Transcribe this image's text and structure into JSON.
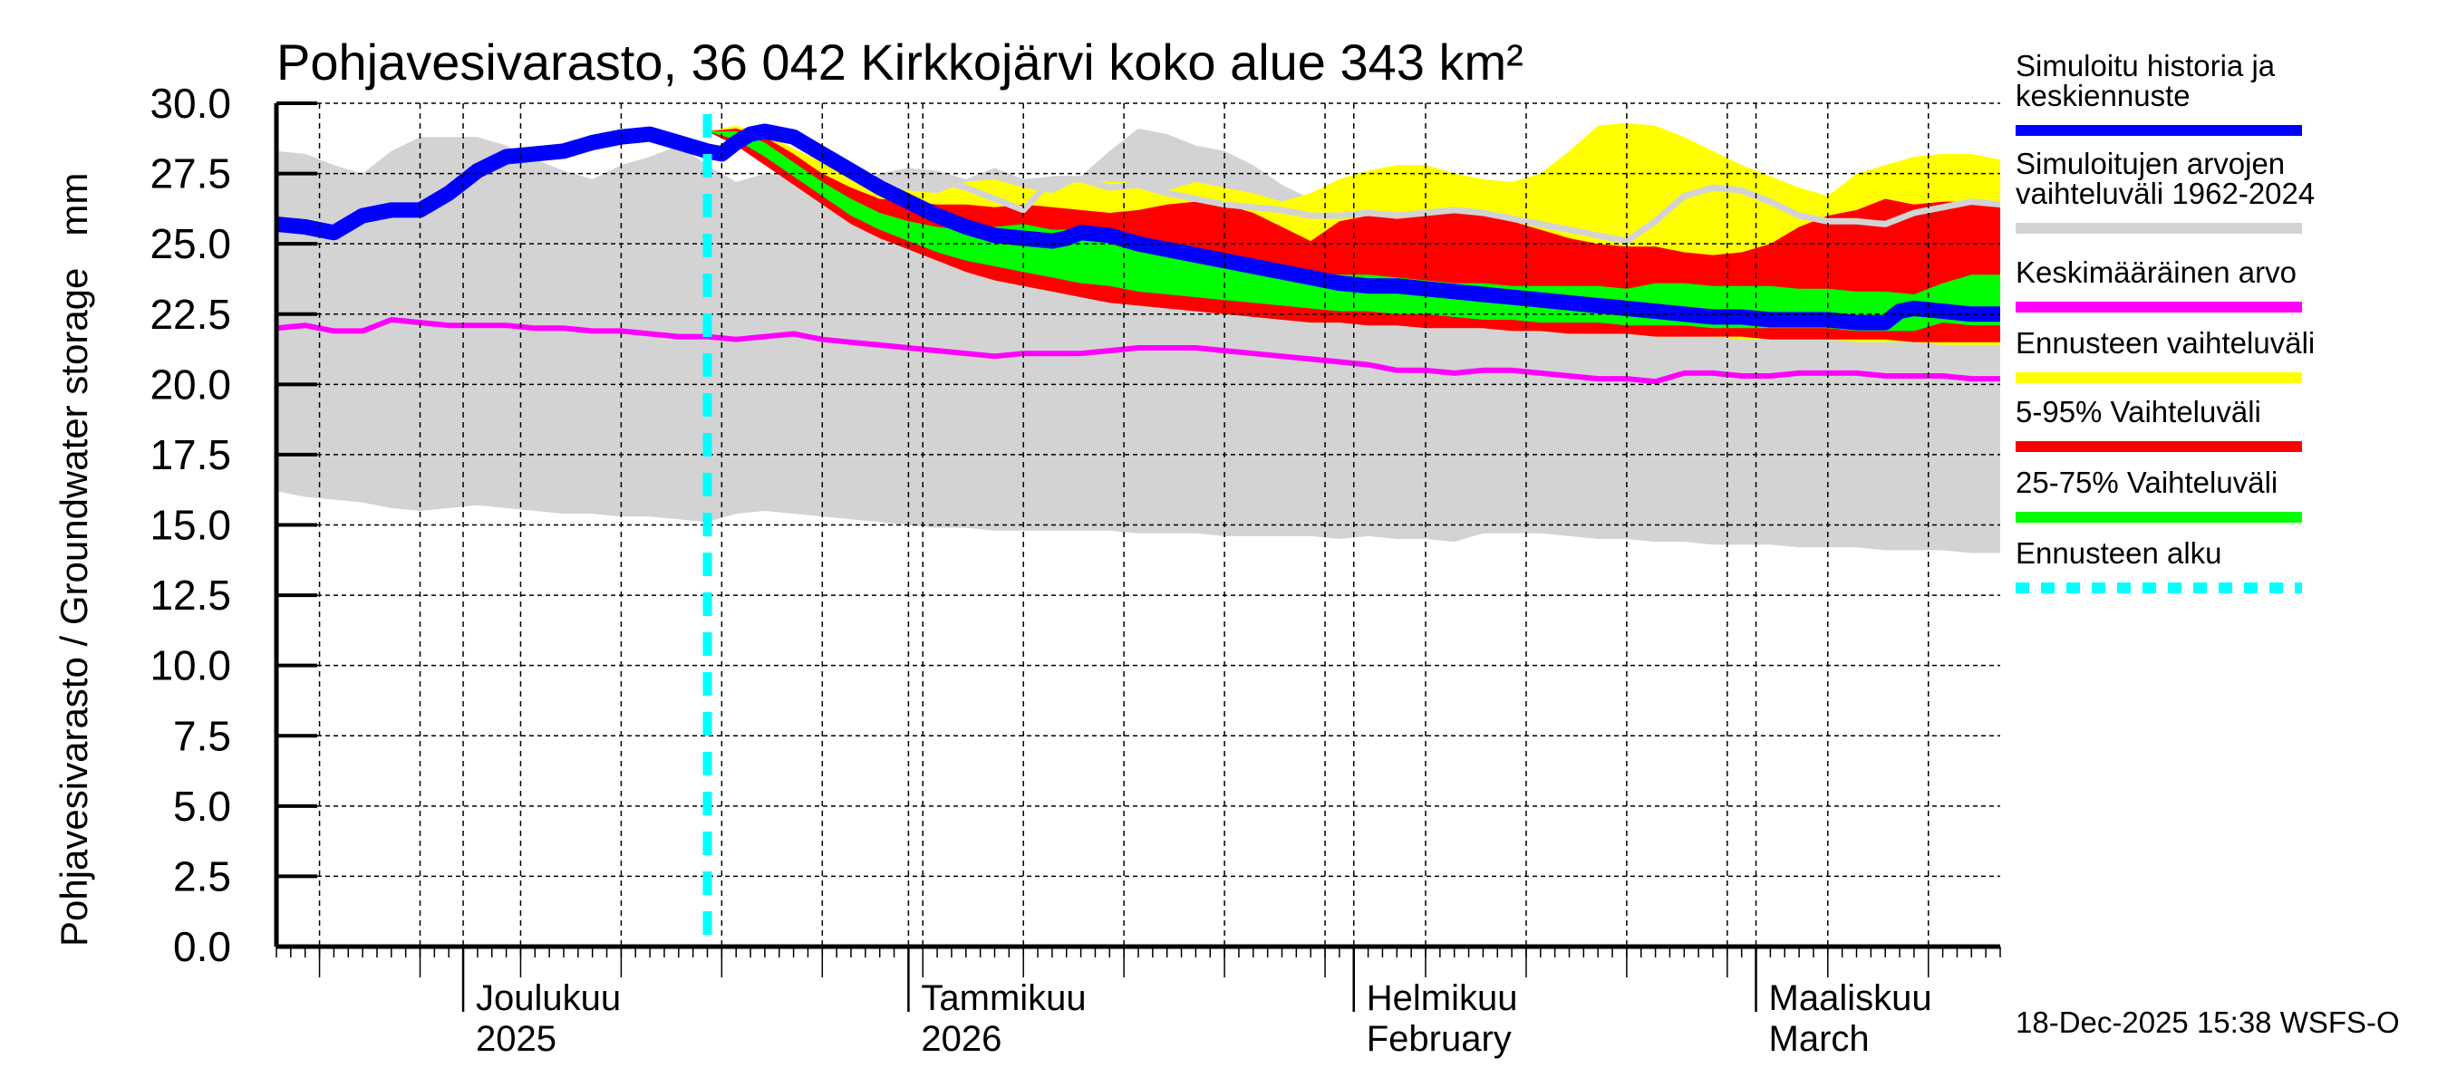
{
  "chart_data": {
    "type": "area",
    "title": "Pohjavesivarasto, 36 042 Kirkkojärvi koko alue 343 km²",
    "ylabel": "Pohjavesivarasto / Groundwater storage   mm",
    "xlabel": "",
    "ylim": [
      0,
      30
    ],
    "yticks": [
      "0.0",
      "2.5",
      "5.0",
      "7.5",
      "10.0",
      "12.5",
      "15.0",
      "17.5",
      "20.0",
      "22.5",
      "25.0",
      "27.5",
      "30.0"
    ],
    "ytick_values": [
      0,
      2.5,
      5,
      7.5,
      10,
      12.5,
      15,
      17.5,
      20,
      22.5,
      25,
      27.5,
      30
    ],
    "x_start_date": "2025-11-18",
    "x_range_days": [
      0,
      120
    ],
    "grid": true,
    "month_labels": [
      {
        "day": 13,
        "line1": "Joulukuu",
        "line2": "2025"
      },
      {
        "day": 44,
        "line1": "Tammikuu",
        "line2": "2026"
      },
      {
        "day": 75,
        "line1": "Helmikuu",
        "line2": "February"
      },
      {
        "day": 103,
        "line1": "Maaliskuu",
        "line2": "March"
      }
    ],
    "forecast_start_day": 30,
    "legend_position": "right",
    "legend": [
      {
        "label": "Simuloitu historia ja keskiennuste",
        "line1": "Simuloitu historia ja",
        "line2": "keskiennuste",
        "color": "#0000ff",
        "style": "solid"
      },
      {
        "label": "Simuloitujen arvojen vaihteluväli 1962-2024",
        "line1": "Simuloitujen arvojen",
        "line2": "vaihteluväli 1962-2024",
        "color": "#d3d3d3",
        "style": "solid"
      },
      {
        "label": "Keskimääräinen arvo",
        "line1": "Keskimääräinen arvo",
        "line2": "",
        "color": "#ff00ff",
        "style": "solid"
      },
      {
        "label": "Ennusteen vaihteluväli",
        "line1": "Ennusteen vaihteluväli",
        "line2": "",
        "color": "#ffff00",
        "style": "solid"
      },
      {
        "label": "5-95% Vaihteluväli",
        "line1": "5-95% Vaihteluväli",
        "line2": "",
        "color": "#ff0000",
        "style": "solid"
      },
      {
        "label": "25-75% Vaihteluväli",
        "line1": "25-75% Vaihteluväli",
        "line2": "",
        "color": "#00ff00",
        "style": "solid"
      },
      {
        "label": "Ennusteen alku",
        "line1": "Ennusteen alku",
        "line2": "",
        "color": "#00ffff",
        "style": "dashed"
      }
    ],
    "series": [
      {
        "name": "Simuloitujen arvojen vaihteluväli 1962-2024",
        "kind": "band",
        "color": "#d3d3d3",
        "x": [
          0,
          2,
          4,
          6,
          8,
          10,
          12,
          14,
          16,
          18,
          20,
          22,
          24,
          26,
          28,
          30,
          32,
          34,
          36,
          38,
          40,
          42,
          44,
          46,
          48,
          50,
          52,
          54,
          56,
          58,
          60,
          62,
          64,
          66,
          68,
          70,
          72,
          74,
          76,
          78,
          80,
          82,
          84,
          86,
          88,
          90,
          92,
          94,
          96,
          98,
          100,
          102,
          104,
          106,
          108,
          110,
          112,
          114,
          116,
          118,
          120
        ],
        "upper": [
          28.3,
          28.2,
          27.8,
          27.5,
          28.3,
          28.8,
          28.8,
          28.8,
          28.5,
          28.0,
          27.6,
          27.3,
          27.8,
          28.1,
          28.5,
          27.8,
          27.2,
          27.5,
          27.5,
          27.4,
          27.0,
          27.5,
          27.7,
          27.6,
          27.3,
          27.7,
          27.3,
          27.4,
          27.4,
          28.3,
          29.1,
          28.9,
          28.5,
          28.3,
          27.8,
          27.1,
          26.6,
          26.3,
          26.1,
          26.0,
          25.8,
          25.6,
          25.4,
          25.2,
          25.0,
          24.8,
          24.7,
          24.6,
          24.5,
          24.4,
          24.3,
          24.2,
          24.1,
          24.0,
          23.9,
          23.8,
          23.7,
          23.6,
          23.5,
          23.4,
          23.3
        ],
        "lower": [
          16.2,
          16.0,
          15.9,
          15.8,
          15.6,
          15.5,
          15.6,
          15.7,
          15.6,
          15.5,
          15.4,
          15.4,
          15.3,
          15.3,
          15.2,
          15.1,
          15.4,
          15.5,
          15.4,
          15.3,
          15.2,
          15.1,
          15.0,
          14.9,
          14.9,
          14.8,
          14.8,
          14.8,
          14.8,
          14.8,
          14.7,
          14.7,
          14.7,
          14.6,
          14.6,
          14.6,
          14.6,
          14.5,
          14.6,
          14.5,
          14.5,
          14.4,
          14.7,
          14.7,
          14.7,
          14.6,
          14.5,
          14.5,
          14.4,
          14.4,
          14.3,
          14.3,
          14.3,
          14.2,
          14.2,
          14.2,
          14.1,
          14.1,
          14.1,
          14.0,
          14.0
        ]
      },
      {
        "name": "Ennusteen vaihteluväli",
        "kind": "band",
        "color": "#ffff00",
        "x": [
          30,
          32,
          34,
          36,
          38,
          40,
          42,
          44,
          46,
          48,
          50,
          52,
          54,
          56,
          58,
          60,
          62,
          64,
          66,
          68,
          70,
          72,
          74,
          76,
          78,
          80,
          82,
          84,
          86,
          88,
          90,
          92,
          94,
          96,
          98,
          100,
          102,
          104,
          106,
          108,
          110,
          112,
          114,
          116,
          118,
          120
        ],
        "upper": [
          29.0,
          29.2,
          28.9,
          28.4,
          27.9,
          27.4,
          27.0,
          26.9,
          26.8,
          27.2,
          27.3,
          27.0,
          26.8,
          27.3,
          27.2,
          27.2,
          26.9,
          27.2,
          27.0,
          26.8,
          26.5,
          26.8,
          27.3,
          27.6,
          27.8,
          27.8,
          27.5,
          27.3,
          27.2,
          27.5,
          28.3,
          29.2,
          29.3,
          29.2,
          28.8,
          28.3,
          27.8,
          27.4,
          27.0,
          26.7,
          27.5,
          27.8,
          28.1,
          28.2,
          28.2,
          28.0
        ],
        "lower": [
          29.0,
          28.6,
          28.0,
          27.3,
          26.6,
          26.0,
          25.4,
          25.0,
          24.6,
          24.2,
          23.9,
          23.6,
          23.4,
          23.2,
          23.0,
          22.9,
          22.8,
          22.7,
          22.6,
          22.5,
          22.4,
          22.3,
          22.3,
          22.2,
          22.2,
          22.1,
          22.1,
          22.0,
          22.0,
          21.9,
          21.9,
          21.8,
          21.8,
          21.7,
          21.7,
          21.7,
          21.6,
          21.6,
          21.6,
          21.6,
          21.5,
          21.5,
          21.5,
          21.4,
          21.4,
          21.4
        ]
      },
      {
        "name": "5-95% Vaihteluväli",
        "kind": "band",
        "color": "#ff0000",
        "x": [
          30,
          32,
          34,
          36,
          38,
          40,
          42,
          44,
          46,
          48,
          50,
          52,
          54,
          56,
          58,
          60,
          62,
          64,
          66,
          68,
          70,
          72,
          74,
          76,
          78,
          80,
          82,
          84,
          86,
          88,
          90,
          92,
          94,
          96,
          98,
          100,
          102,
          104,
          106,
          108,
          110,
          112,
          114,
          116,
          118,
          120
        ],
        "upper": [
          29.0,
          29.1,
          28.8,
          28.2,
          27.5,
          27.0,
          26.6,
          26.5,
          26.4,
          26.4,
          26.3,
          26.4,
          26.3,
          26.2,
          26.1,
          26.2,
          26.4,
          26.5,
          26.4,
          26.1,
          25.6,
          25.1,
          25.8,
          26.0,
          26.1,
          26.2,
          26.3,
          26.1,
          25.8,
          25.5,
          25.2,
          25.0,
          24.9,
          24.9,
          24.7,
          24.6,
          24.7,
          25.0,
          25.6,
          26.0,
          26.2,
          26.6,
          26.4,
          26.5,
          26.5,
          26.3
        ],
        "lower": [
          29.0,
          28.5,
          27.8,
          27.1,
          26.4,
          25.7,
          25.2,
          24.8,
          24.4,
          24.0,
          23.7,
          23.5,
          23.3,
          23.1,
          22.9,
          22.8,
          22.7,
          22.6,
          22.5,
          22.4,
          22.3,
          22.2,
          22.2,
          22.1,
          22.1,
          22.0,
          22.0,
          22.0,
          21.9,
          21.9,
          21.8,
          21.8,
          21.8,
          21.7,
          21.7,
          21.7,
          21.7,
          21.6,
          21.6,
          21.6,
          21.6,
          21.6,
          21.5,
          21.5,
          21.5,
          21.5
        ]
      },
      {
        "name": "25-75% Vaihteluväli",
        "kind": "band",
        "color": "#00ff00",
        "x": [
          30,
          32,
          34,
          36,
          38,
          40,
          42,
          44,
          46,
          48,
          50,
          52,
          54,
          56,
          58,
          60,
          62,
          64,
          66,
          68,
          70,
          72,
          74,
          76,
          78,
          80,
          82,
          84,
          86,
          88,
          90,
          92,
          94,
          96,
          98,
          100,
          102,
          104,
          106,
          108,
          110,
          112,
          114,
          116,
          118,
          120
        ],
        "upper": [
          29.0,
          29.0,
          28.6,
          27.9,
          27.2,
          26.6,
          26.1,
          25.8,
          25.6,
          25.5,
          25.6,
          25.7,
          25.5,
          25.5,
          25.4,
          25.1,
          24.9,
          24.7,
          24.5,
          24.3,
          24.1,
          24.0,
          23.9,
          23.9,
          23.8,
          23.7,
          23.6,
          23.6,
          23.5,
          23.5,
          23.5,
          23.5,
          23.4,
          23.6,
          23.6,
          23.5,
          23.5,
          23.5,
          23.4,
          23.4,
          23.3,
          23.3,
          23.2,
          23.6,
          23.9,
          23.9
        ],
        "lower": [
          29.0,
          28.7,
          28.1,
          27.4,
          26.7,
          26.0,
          25.5,
          25.1,
          24.7,
          24.4,
          24.2,
          24.0,
          23.8,
          23.6,
          23.5,
          23.3,
          23.2,
          23.1,
          23.0,
          22.9,
          22.8,
          22.7,
          22.6,
          22.6,
          22.5,
          22.5,
          22.4,
          22.3,
          22.3,
          22.2,
          22.2,
          22.2,
          22.1,
          22.1,
          22.1,
          22.0,
          22.0,
          22.0,
          22.0,
          22.0,
          21.9,
          21.9,
          21.9,
          22.2,
          22.1,
          22.1
        ]
      },
      {
        "name": "Simuloitu historia ja keskiennuste",
        "kind": "line",
        "color": "#0000ff",
        "x": [
          0,
          2,
          4,
          6,
          8,
          10,
          12,
          14,
          16,
          18,
          20,
          22,
          24,
          26,
          28,
          30,
          31,
          32,
          33,
          34,
          36,
          38,
          40,
          42,
          44,
          46,
          48,
          50,
          52,
          54,
          55,
          56,
          58,
          60,
          62,
          64,
          66,
          68,
          70,
          72,
          74,
          76,
          78,
          80,
          82,
          84,
          86,
          88,
          90,
          92,
          94,
          96,
          98,
          100,
          102,
          104,
          106,
          108,
          110,
          112,
          113,
          114,
          116,
          118,
          120
        ],
        "values": [
          25.7,
          25.6,
          25.4,
          26.0,
          26.2,
          26.2,
          26.8,
          27.6,
          28.1,
          28.2,
          28.3,
          28.6,
          28.8,
          28.9,
          28.6,
          28.3,
          28.2,
          28.6,
          28.9,
          29.0,
          28.8,
          28.2,
          27.6,
          27.0,
          26.5,
          26.0,
          25.6,
          25.3,
          25.2,
          25.1,
          25.2,
          25.4,
          25.3,
          25.0,
          24.8,
          24.6,
          24.4,
          24.2,
          24.0,
          23.8,
          23.6,
          23.5,
          23.5,
          23.4,
          23.3,
          23.2,
          23.1,
          23.0,
          22.9,
          22.8,
          22.7,
          22.6,
          22.5,
          22.4,
          22.4,
          22.3,
          22.3,
          22.3,
          22.2,
          22.2,
          22.6,
          22.7,
          22.6,
          22.5,
          22.5
        ]
      },
      {
        "name": "Keskimääräinen arvo",
        "kind": "line",
        "color": "#ff00ff",
        "x": [
          0,
          2,
          4,
          6,
          8,
          10,
          12,
          14,
          16,
          18,
          20,
          22,
          24,
          26,
          28,
          30,
          32,
          34,
          36,
          38,
          40,
          42,
          44,
          46,
          48,
          50,
          52,
          54,
          56,
          58,
          60,
          62,
          64,
          66,
          68,
          70,
          72,
          74,
          76,
          78,
          80,
          82,
          84,
          86,
          88,
          90,
          92,
          94,
          96,
          98,
          100,
          102,
          104,
          106,
          108,
          110,
          112,
          114,
          116,
          118,
          120
        ],
        "values": [
          22.0,
          22.1,
          21.9,
          21.9,
          22.3,
          22.2,
          22.1,
          22.1,
          22.1,
          22.0,
          22.0,
          21.9,
          21.9,
          21.8,
          21.7,
          21.7,
          21.6,
          21.7,
          21.8,
          21.6,
          21.5,
          21.4,
          21.3,
          21.2,
          21.1,
          21.0,
          21.1,
          21.1,
          21.1,
          21.2,
          21.3,
          21.3,
          21.3,
          21.2,
          21.1,
          21.0,
          20.9,
          20.8,
          20.7,
          20.5,
          20.5,
          20.4,
          20.5,
          20.5,
          20.4,
          20.3,
          20.2,
          20.2,
          20.1,
          20.4,
          20.4,
          20.3,
          20.3,
          20.4,
          20.4,
          20.4,
          20.3,
          20.3,
          20.3,
          20.2,
          20.2
        ]
      },
      {
        "name": "Historical scenario (light gray line)",
        "kind": "line",
        "color": "#d3d3d3",
        "x": [
          34,
          36,
          38,
          40,
          42,
          44,
          46,
          48,
          50,
          52,
          54,
          56,
          58,
          60,
          62,
          64,
          66,
          68,
          70,
          72,
          74,
          76,
          78,
          80,
          82,
          84,
          86,
          88,
          90,
          92,
          94,
          96,
          98,
          100,
          102,
          104,
          106,
          108,
          110,
          112,
          114,
          116,
          118,
          120
        ],
        "values": [
          29.0,
          28.8,
          28.2,
          27.5,
          27.0,
          27.1,
          27.3,
          27.0,
          26.6,
          26.2,
          27.3,
          27.3,
          27.0,
          27.1,
          26.8,
          26.6,
          26.4,
          26.3,
          26.2,
          26.0,
          26.0,
          26.1,
          26.0,
          26.1,
          26.2,
          26.1,
          25.9,
          25.7,
          25.5,
          25.3,
          25.1,
          25.8,
          26.7,
          27.0,
          26.9,
          26.5,
          26.0,
          25.8,
          25.8,
          25.7,
          26.1,
          26.3,
          26.5,
          26.4
        ]
      }
    ],
    "timestamp": "18-Dec-2025 15:38 WSFS-O"
  }
}
